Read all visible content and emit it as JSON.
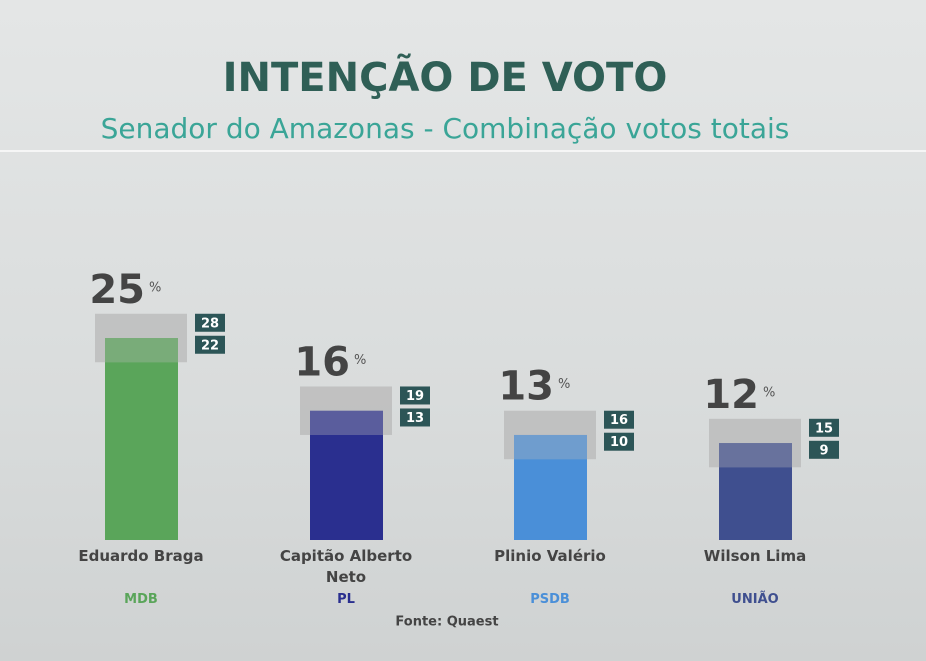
{
  "chart_data": {
    "type": "bar",
    "title": "INTENÇÃO DE VOTO",
    "subtitle": "Senador do Amazonas - Combinação votos totais",
    "categories": [
      "Eduardo Braga",
      "Capitão Alberto Neto",
      "Plinio Valério",
      "Wilson Lima"
    ],
    "parties": [
      "MDB",
      "PL",
      "PSDB",
      "UNIÃO"
    ],
    "values": [
      25,
      16,
      13,
      12
    ],
    "unit": "%",
    "upper": [
      28,
      19,
      16,
      15
    ],
    "lower": [
      22,
      13,
      10,
      9
    ],
    "colors": [
      "#5aa55a",
      "#2a2f8f",
      "#4a8fd8",
      "#3f4f8f"
    ],
    "source": "Fonte: Quaest"
  }
}
